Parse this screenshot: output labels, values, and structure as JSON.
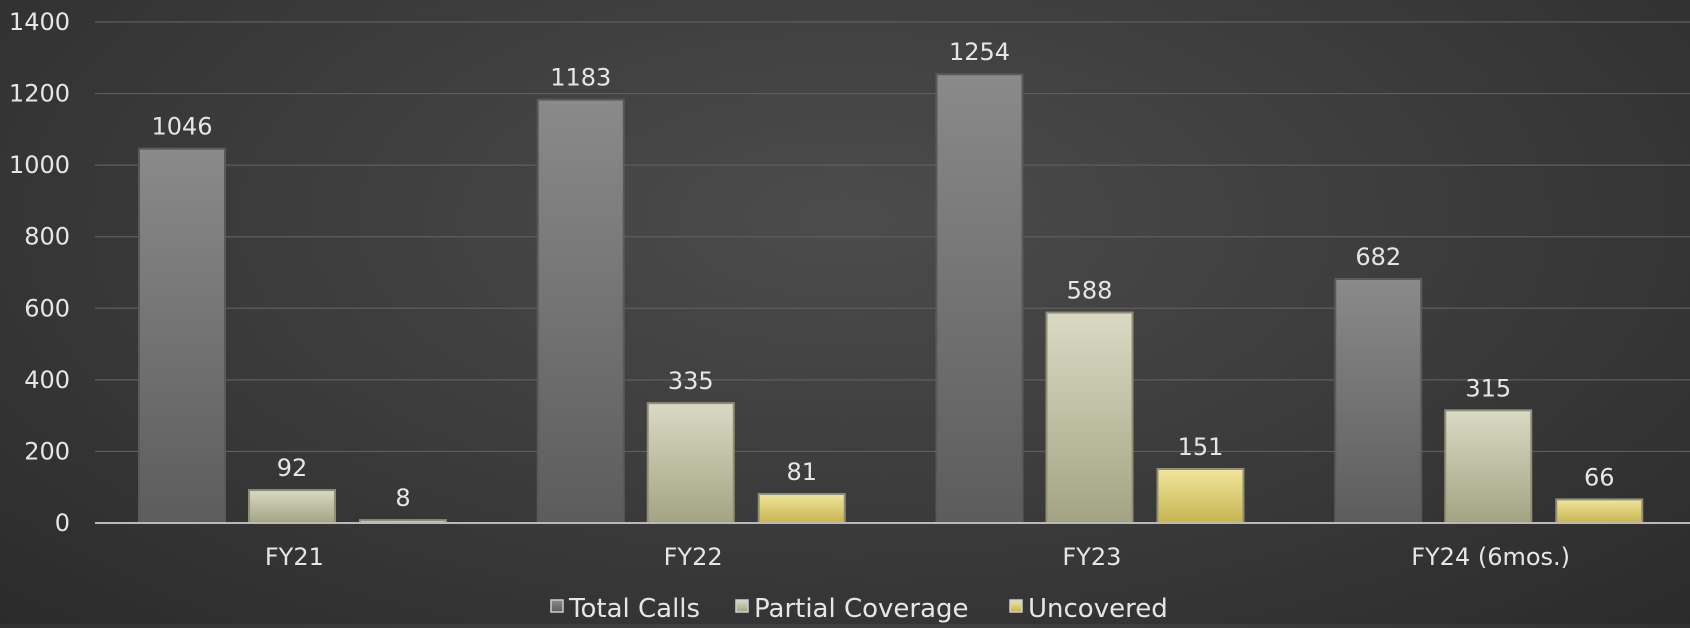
{
  "chart_data": {
    "type": "bar",
    "categories": [
      "FY21",
      "FY22",
      "FY23",
      "FY24 (6mos.)"
    ],
    "series": [
      {
        "name": "Total Calls",
        "values": [
          1046,
          1183,
          1254,
          682
        ],
        "color": "#7a7a7a"
      },
      {
        "name": "Partial Coverage",
        "values": [
          92,
          335,
          588,
          315
        ],
        "color": "#cfcfb2"
      },
      {
        "name": "Uncovered",
        "values": [
          8,
          81,
          151,
          66
        ],
        "color": "#e0d37a"
      }
    ],
    "ylim": [
      0,
      1400
    ],
    "yticks": [
      0,
      200,
      400,
      600,
      800,
      1000,
      1200,
      1400
    ],
    "grid": true,
    "legend": "bottom",
    "data_labels": true
  }
}
